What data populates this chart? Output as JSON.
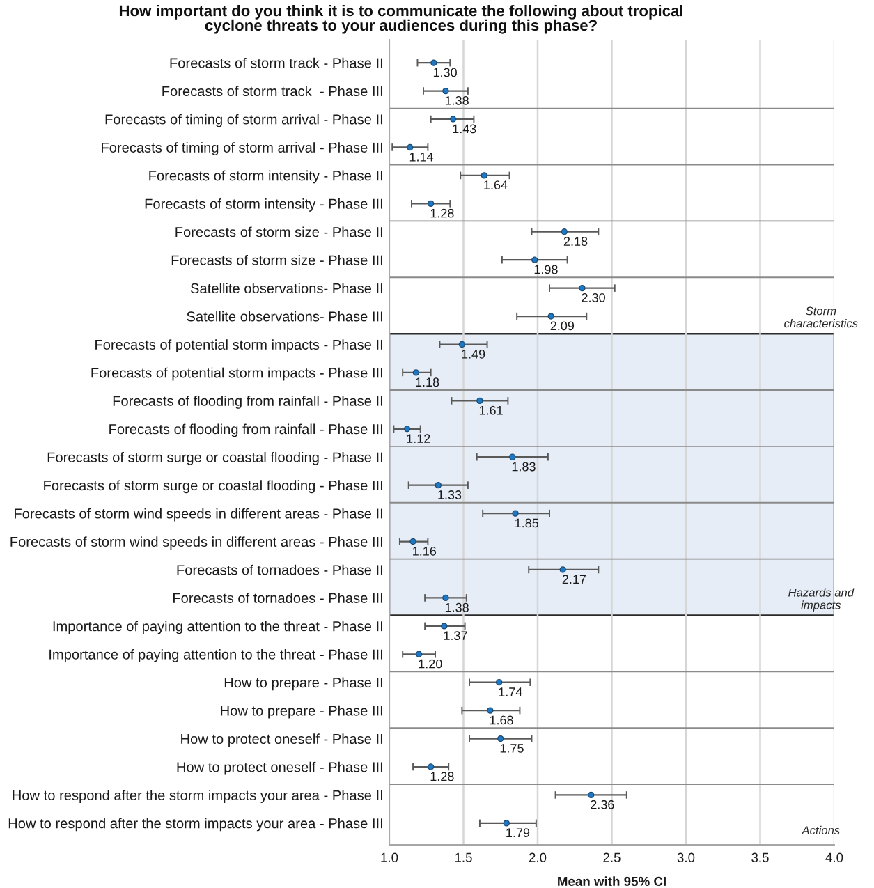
{
  "chart_data": {
    "type": "scatter",
    "orientation": "horizontal",
    "title": "How important do you think it is to communicate the following about tropical\ncyclone threats to your audiences during this phase?",
    "xlabel": "Mean with 95% CI",
    "categories": [
      "Forecasts of storm track - Phase II",
      "Forecasts of storm track  - Phase III",
      "Forecasts of timing of storm arrival - Phase II",
      "Forecasts of timing of storm arrival - Phase III",
      "Forecasts of storm intensity - Phase II",
      "Forecasts of storm intensity - Phase III",
      "Forecasts of storm size - Phase II",
      "Forecasts of storm size - Phase III",
      "Satellite observations- Phase II",
      "Satellite observations- Phase III",
      "Forecasts of potential storm impacts - Phase II",
      "Forecasts of potential storm impacts - Phase III",
      "Forecasts of flooding from rainfall - Phase II",
      "Forecasts of flooding from rainfall - Phase III",
      "Forecasts of storm surge or coastal flooding - Phase II",
      "Forecasts of storm surge or coastal flooding - Phase III",
      "Forecasts of storm wind speeds in different areas - Phase II",
      "Forecasts of storm wind speeds in different areas - Phase III",
      "Forecasts of tornadoes - Phase II",
      "Forecasts of tornadoes - Phase III",
      "Importance of paying attention to the threat - Phase II",
      "Importance of paying attention to the threat - Phase III",
      "How to prepare - Phase II",
      "How to prepare - Phase III",
      "How to protect oneself - Phase II",
      "How to protect oneself - Phase III",
      "How to respond after the storm impacts your area - Phase II",
      "How to respond after the storm impacts your area - Phase III"
    ],
    "values": [
      1.3,
      1.38,
      1.43,
      1.14,
      1.64,
      1.28,
      2.18,
      1.98,
      2.3,
      2.09,
      1.49,
      1.18,
      1.61,
      1.12,
      1.83,
      1.33,
      1.85,
      1.16,
      2.17,
      1.38,
      1.37,
      1.2,
      1.74,
      1.68,
      1.75,
      1.28,
      2.36,
      1.79
    ],
    "value_labels": [
      "1.30",
      "1.38",
      "1.43",
      "1.14",
      "1.64",
      "1.28",
      "2.18",
      "1.98",
      "2.30",
      "2.09",
      "1.49",
      "1.18",
      "1.61",
      "1.12",
      "1.83",
      "1.33",
      "1.85",
      "1.16",
      "2.17",
      "1.38",
      "1.37",
      "1.20",
      "1.74",
      "1.68",
      "1.75",
      "1.28",
      "2.36",
      "1.79"
    ],
    "errors": [
      [
        1.19,
        1.41
      ],
      [
        1.23,
        1.53
      ],
      [
        1.28,
        1.57
      ],
      [
        1.02,
        1.26
      ],
      [
        1.48,
        1.81
      ],
      [
        1.15,
        1.41
      ],
      [
        1.96,
        2.41
      ],
      [
        1.76,
        2.2
      ],
      [
        2.08,
        2.52
      ],
      [
        1.86,
        2.33
      ],
      [
        1.34,
        1.66
      ],
      [
        1.09,
        1.28
      ],
      [
        1.42,
        1.8
      ],
      [
        1.03,
        1.21
      ],
      [
        1.59,
        2.07
      ],
      [
        1.13,
        1.53
      ],
      [
        1.63,
        2.08
      ],
      [
        1.07,
        1.26
      ],
      [
        1.94,
        2.41
      ],
      [
        1.24,
        1.52
      ],
      [
        1.24,
        1.51
      ],
      [
        1.09,
        1.31
      ],
      [
        1.54,
        1.95
      ],
      [
        1.49,
        1.88
      ],
      [
        1.54,
        1.96
      ],
      [
        1.16,
        1.4
      ],
      [
        2.12,
        2.6
      ],
      [
        1.61,
        1.99
      ]
    ],
    "color": "#1f78c4",
    "marker": "circle",
    "xlim": [
      1,
      4
    ],
    "xticks": [
      {
        "value": 1,
        "label": "1.0"
      },
      1.5,
      {
        "value": 2,
        "label": "2.0"
      },
      2.5,
      {
        "value": 3,
        "label": "3.0"
      },
      3.5,
      {
        "value": 4,
        "label": "4.0"
      }
    ],
    "grid": true,
    "bands": [
      {
        "axis": "y",
        "from": "Forecasts of potential storm impacts - Phase II",
        "to": "Forecasts of tornadoes - Phase III",
        "label": "Hazards and\nimpacts",
        "color": "#e6edf7"
      }
    ],
    "annotations": [
      "Storm\ncharacteristics",
      "Actions"
    ]
  }
}
